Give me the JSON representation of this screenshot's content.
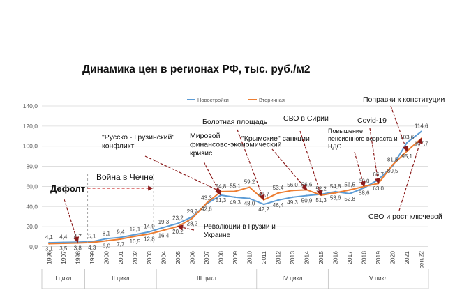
{
  "chart_data": {
    "type": "line",
    "title": "Динамика цен в регионах РФ, тыс. руб./м2",
    "ylim": [
      0,
      140
    ],
    "yticks": [
      "0,0",
      "20,0",
      "40,0",
      "60,0",
      "80,0",
      "100,0",
      "120,0",
      "140,0"
    ],
    "categories": [
      "1996",
      "1997",
      "1998",
      "1999",
      "2000",
      "2001",
      "2002",
      "2003",
      "2004",
      "2005",
      "2006",
      "2007",
      "2008",
      "2009",
      "2010",
      "2011",
      "2012",
      "2013",
      "2014",
      "2015",
      "2016",
      "2017",
      "2018",
      "2019",
      "2020",
      "2021",
      "сен.22"
    ],
    "series": [
      {
        "name": "Новостройки",
        "color": "#5b9bd5",
        "values": [
          4.1,
          4.4,
          4.7,
          5.1,
          8.1,
          9.4,
          12.1,
          14.9,
          19.3,
          23.2,
          29.7,
          42.6,
          51.3,
          49.3,
          48.0,
          42.2,
          46.4,
          49.3,
          50.9,
          52.2,
          54.8,
          52.8,
          58.6,
          66.7,
          80.5,
          103.6,
          114.6
        ],
        "labels": [
          "4,1",
          "4,4",
          "4,7",
          "5,1",
          "8,1",
          "9,4",
          "12,1",
          "14,9",
          "19,3",
          "23,2",
          "29,7",
          "42,6",
          "51,3",
          "49,3",
          "48,0",
          "42,2",
          "46,4",
          "49,3",
          "50,9",
          "52,2",
          "54,8",
          "52,8",
          "58,6",
          "66,7",
          "80,5",
          "103,6",
          "114,6"
        ]
      },
      {
        "name": "Вторичная",
        "color": "#ed7d31",
        "values": [
          3.1,
          3.5,
          3.8,
          4.3,
          6.0,
          7.7,
          10.5,
          12.8,
          16.4,
          20.2,
          28.2,
          43.3,
          54.8,
          55.1,
          59.2,
          46.7,
          53.4,
          56.0,
          56.6,
          51.3,
          53.6,
          56.5,
          60.0,
          63.0,
          81.5,
          95.1,
          107.7
        ],
        "labels": [
          "3,1",
          "3,5",
          "3,8",
          "4,3",
          "6,0",
          "7,7",
          "10,5",
          "12,8",
          "16,4",
          "20,2",
          "28,2",
          "43,3",
          "54,8",
          "55,1",
          "59,2",
          "46,7",
          "53,4",
          "56,0",
          "56,6",
          "51,3",
          "53,6",
          "56,5",
          "60,0",
          "63,0",
          "81,5",
          "95,1",
          "107,7"
        ]
      }
    ],
    "legend_placement": "top-center",
    "grid": true,
    "cycles": [
      {
        "label": "I цикл",
        "start": 0,
        "end": 2
      },
      {
        "label": "II цикл",
        "start": 3,
        "end": 7
      },
      {
        "label": "III цикл",
        "start": 8,
        "end": 14
      },
      {
        "label": "IV цикл",
        "start": 15,
        "end": 19
      },
      {
        "label": "V цикл",
        "start": 20,
        "end": 26
      }
    ],
    "annotations": [
      {
        "lines": [
          "Дефолт"
        ],
        "size": 13,
        "bold": true,
        "target": 2,
        "series": 0
      },
      {
        "lines": [
          "Война в Чечне"
        ],
        "size": 12,
        "bold": false,
        "range": [
          3,
          7
        ]
      },
      {
        "lines": [
          "\"Русско - Грузинский\"",
          "конфликт"
        ],
        "size": 10.5,
        "bold": false,
        "target": 12,
        "series": 1
      },
      {
        "lines": [
          "Мировой",
          "финансово-экономический",
          "кризис"
        ],
        "size": 10.5,
        "bold": false,
        "target": 12,
        "series": 0
      },
      {
        "lines": [
          "Болотная площадь"
        ],
        "size": 10.5,
        "bold": false,
        "target": 15,
        "series": 1
      },
      {
        "lines": [
          "\"Крымские\" санкции"
        ],
        "size": 10.5,
        "bold": false,
        "target": 18,
        "series": 1
      },
      {
        "lines": [
          "СВО в Сирии"
        ],
        "size": 10.5,
        "bold": false,
        "target": 19,
        "series": 1
      },
      {
        "lines": [
          "Повышение",
          "пенсионного возраста и",
          "НДС"
        ],
        "size": 9,
        "bold": false,
        "target": 22,
        "series": 1
      },
      {
        "lines": [
          "Covid-19"
        ],
        "size": 10.5,
        "bold": false,
        "target": 23,
        "series": 1
      },
      {
        "lines": [
          "Поправки к конституции"
        ],
        "size": 10.5,
        "bold": false,
        "target": 25,
        "series": 1
      },
      {
        "lines": [
          "Революции в Грузии и",
          "Украине"
        ],
        "size": 10,
        "bold": false,
        "target": 9,
        "series": 1
      },
      {
        "lines": [
          "СВО и рост ключевой"
        ],
        "size": 10.5,
        "bold": false,
        "target": 26,
        "series": 1
      }
    ]
  }
}
